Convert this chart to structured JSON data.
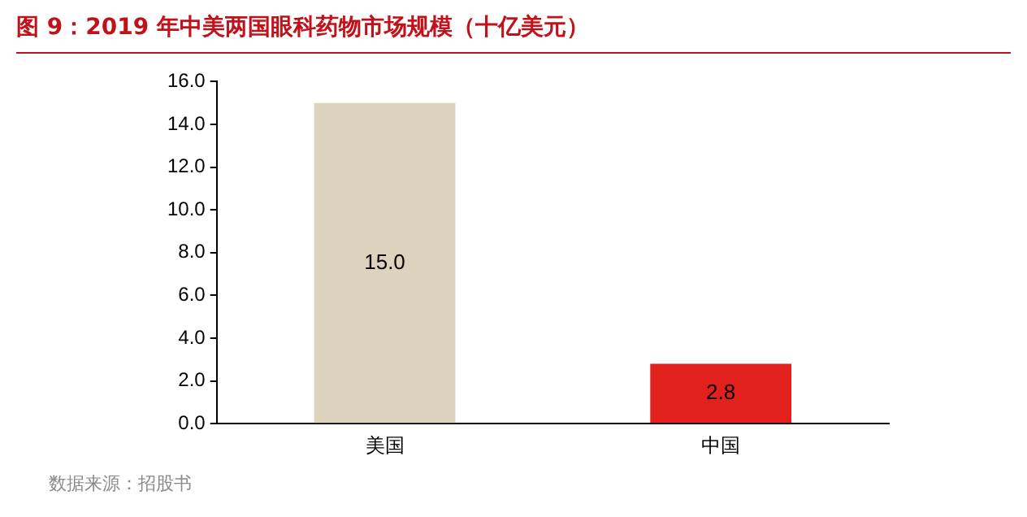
{
  "chart_data": {
    "type": "bar",
    "title": "图 9：2019 年中美两国眼科药物市场规模（十亿美元）",
    "categories": [
      "美国",
      "中国"
    ],
    "values": [
      15.0,
      2.8
    ],
    "colors": [
      "#dcd3bc",
      "#e3211c"
    ],
    "value_labels": [
      "15.0",
      "2.8"
    ],
    "ylim": [
      0,
      16
    ],
    "yticks": [
      {
        "value": 0,
        "label": "0.0"
      },
      {
        "value": 2,
        "label": "2.0"
      },
      {
        "value": 4,
        "label": "4.0"
      },
      {
        "value": 6,
        "label": "6.0"
      },
      {
        "value": 8,
        "label": "8.0"
      },
      {
        "value": 10,
        "label": "10.0"
      },
      {
        "value": 12,
        "label": "12.0"
      },
      {
        "value": 14,
        "label": "14.0"
      },
      {
        "value": 16,
        "label": "16.0"
      }
    ],
    "grid": false,
    "legend": false,
    "annotations": [
      "数据来源：招股书"
    ]
  }
}
